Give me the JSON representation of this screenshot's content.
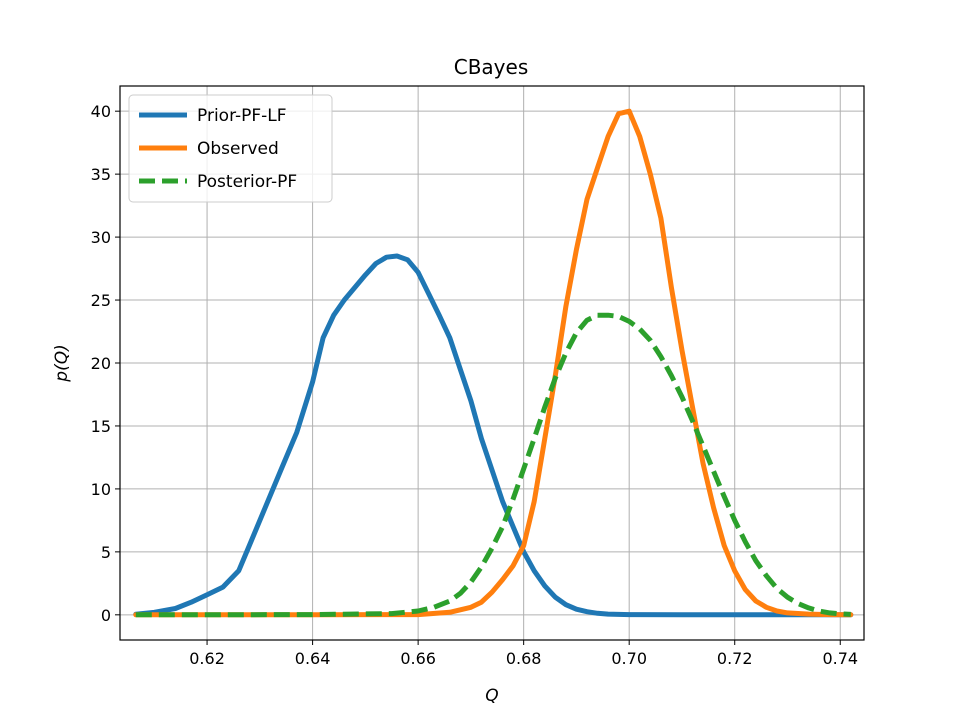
{
  "chart_data": {
    "type": "line",
    "title": "CBayes",
    "xlabel": "Q",
    "ylabel": "p(Q)",
    "xlim": [
      0.6035,
      0.7445
    ],
    "ylim": [
      -2.0,
      42.0
    ],
    "xticks": [
      0.62,
      0.64,
      0.66,
      0.68,
      0.7,
      0.72,
      0.74
    ],
    "xtick_labels": [
      "0.62",
      "0.64",
      "0.66",
      "0.68",
      "0.70",
      "0.72",
      "0.74"
    ],
    "yticks": [
      0,
      5,
      10,
      15,
      20,
      25,
      30,
      35,
      40
    ],
    "ytick_labels": [
      "0",
      "5",
      "10",
      "15",
      "20",
      "25",
      "30",
      "35",
      "40"
    ],
    "grid": true,
    "legend_position": "top-left",
    "series": [
      {
        "name": "Prior-PF-LF",
        "color": "#1f77b4",
        "dash": "solid",
        "x": [
          0.6065,
          0.61,
          0.614,
          0.617,
          0.62,
          0.623,
          0.626,
          0.628,
          0.631,
          0.634,
          0.637,
          0.64,
          0.642,
          0.644,
          0.646,
          0.648,
          0.65,
          0.652,
          0.654,
          0.656,
          0.658,
          0.66,
          0.662,
          0.664,
          0.666,
          0.668,
          0.67,
          0.672,
          0.674,
          0.676,
          0.678,
          0.68,
          0.682,
          0.684,
          0.686,
          0.688,
          0.69,
          0.692,
          0.694,
          0.696,
          0.7,
          0.71,
          0.72,
          0.73,
          0.742
        ],
        "y": [
          0.05,
          0.2,
          0.5,
          1.0,
          1.6,
          2.2,
          3.5,
          5.5,
          8.5,
          11.5,
          14.5,
          18.5,
          22.0,
          23.8,
          25.0,
          26.0,
          27.0,
          27.9,
          28.4,
          28.5,
          28.2,
          27.2,
          25.5,
          23.8,
          22.0,
          19.5,
          17.0,
          14.0,
          11.5,
          9.0,
          7.0,
          5.0,
          3.5,
          2.3,
          1.4,
          0.8,
          0.45,
          0.25,
          0.12,
          0.06,
          0.02,
          0.01,
          0.0,
          0.0,
          0.0
        ]
      },
      {
        "name": "Observed",
        "color": "#ff7f0e",
        "dash": "solid",
        "x": [
          0.6065,
          0.62,
          0.64,
          0.66,
          0.666,
          0.67,
          0.672,
          0.674,
          0.676,
          0.678,
          0.68,
          0.682,
          0.684,
          0.686,
          0.688,
          0.69,
          0.692,
          0.694,
          0.696,
          0.698,
          0.7,
          0.702,
          0.704,
          0.706,
          0.708,
          0.71,
          0.712,
          0.714,
          0.716,
          0.718,
          0.72,
          0.722,
          0.724,
          0.726,
          0.728,
          0.73,
          0.734,
          0.738,
          0.742
        ],
        "y": [
          0.0,
          0.0,
          0.0,
          0.02,
          0.2,
          0.6,
          1.0,
          1.8,
          2.8,
          3.9,
          5.5,
          9.0,
          14.0,
          19.0,
          24.5,
          29.0,
          33.0,
          35.5,
          38.0,
          39.8,
          40.0,
          38.0,
          35.0,
          31.5,
          26.0,
          21.0,
          16.5,
          12.0,
          8.5,
          5.5,
          3.5,
          2.0,
          1.1,
          0.6,
          0.3,
          0.15,
          0.06,
          0.02,
          0.01
        ]
      },
      {
        "name": "Posterior-PF",
        "color": "#2ca02c",
        "dash": "dashed",
        "x": [
          0.6065,
          0.62,
          0.64,
          0.655,
          0.66,
          0.663,
          0.666,
          0.668,
          0.67,
          0.672,
          0.674,
          0.676,
          0.678,
          0.68,
          0.682,
          0.684,
          0.686,
          0.688,
          0.69,
          0.692,
          0.694,
          0.696,
          0.698,
          0.7,
          0.702,
          0.704,
          0.706,
          0.708,
          0.71,
          0.712,
          0.714,
          0.716,
          0.718,
          0.72,
          0.722,
          0.724,
          0.726,
          0.728,
          0.73,
          0.732,
          0.734,
          0.736,
          0.738,
          0.74,
          0.742
        ],
        "y": [
          0.0,
          0.0,
          0.02,
          0.1,
          0.3,
          0.6,
          1.1,
          1.7,
          2.6,
          3.8,
          5.3,
          7.0,
          9.2,
          11.6,
          14.0,
          16.5,
          18.8,
          20.8,
          22.4,
          23.4,
          23.8,
          23.8,
          23.7,
          23.3,
          22.7,
          21.8,
          20.5,
          19.0,
          17.3,
          15.4,
          13.4,
          11.4,
          9.4,
          7.5,
          5.8,
          4.3,
          3.1,
          2.1,
          1.4,
          0.9,
          0.55,
          0.3,
          0.15,
          0.07,
          0.03
        ]
      }
    ]
  }
}
